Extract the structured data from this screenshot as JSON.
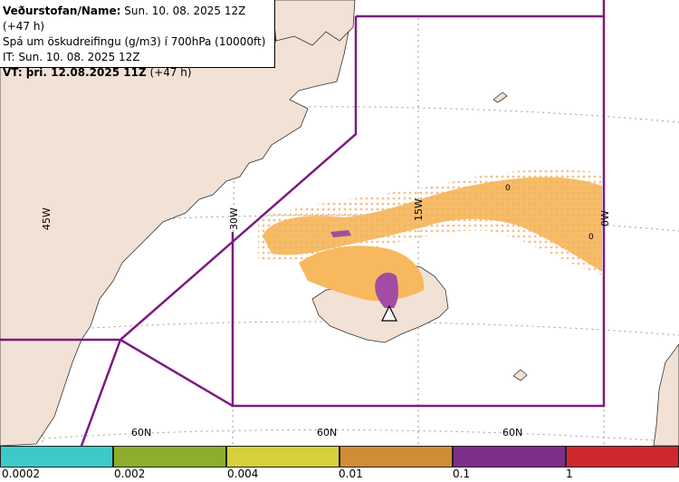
{
  "header": {
    "line1_bold": "Veðurstofan/Name:",
    "line1_rest": " Sun. 10. 08. 2025 12Z (+47 h)",
    "line2": "Spá um öskudreifingu (g/m3) í 700hPa (10000ft)",
    "line3": "IT: Sun. 10. 08. 2025 12Z",
    "line4_bold": "VT: þri. 12.08.2025 11Z",
    "line4_rest": " (+47 h)"
  },
  "map": {
    "land_color": "#f2e1d5",
    "sea_color": "#ffffff",
    "boundary_color": "#7b1a80",
    "graticule_labels": {
      "lon": [
        "45W",
        "30W",
        "15W",
        "0W"
      ],
      "lat": [
        "60N",
        "60N",
        "60N"
      ]
    },
    "contour_labels": [
      "0",
      "0"
    ],
    "volcano_marker": "volcano-triangle-icon"
  },
  "legend": {
    "colors": [
      "#3ec9c9",
      "#8cae2c",
      "#d6d03a",
      "#cf8d36",
      "#7c2f86",
      "#d0262e"
    ],
    "labels": [
      "0.0002",
      "0.002",
      "0.004",
      "0.01",
      "0.1",
      "1"
    ]
  }
}
